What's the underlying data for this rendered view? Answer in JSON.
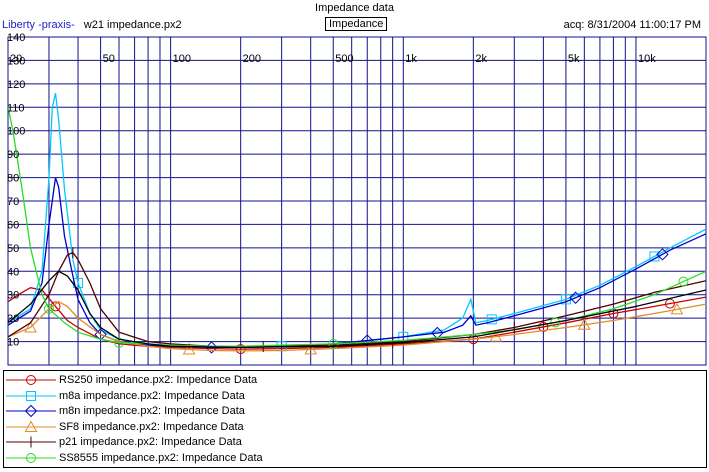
{
  "window": {
    "title": "Impedance data",
    "brand": "Liberty -praxis-",
    "file": "w21 impedance.px2",
    "mode_label": "Impedance",
    "acq": "acq: 8/31/2004 11:00:17 PM"
  },
  "colors": {
    "grid": "#10108c",
    "axis_text": "#000000"
  },
  "chart_data": {
    "type": "line",
    "title": "Impedance data",
    "xscale": "log",
    "xlim": [
      20,
      20000
    ],
    "ylim": [
      0,
      140
    ],
    "x_ticks": [
      20,
      50,
      100,
      200,
      500,
      1000,
      2000,
      5000,
      10000
    ],
    "x_tick_labels": [
      "20",
      "50",
      "100",
      "200",
      "500",
      "1k",
      "2k",
      "5k",
      "10k"
    ],
    "y_ticks": [
      10,
      20,
      30,
      40,
      50,
      60,
      70,
      80,
      90,
      100,
      110,
      120,
      130,
      140
    ],
    "y_tick_labels": [
      "10",
      "20",
      "30",
      "40",
      "50",
      "60",
      "70",
      "80",
      "90",
      "100",
      "110",
      "120",
      "130",
      "140"
    ],
    "grid": true,
    "legend_position": "bottom",
    "series": [
      {
        "name": "RS250 impedance.px2:  Impedance Data",
        "color": "#c80000",
        "marker": "circle",
        "points": [
          [
            20,
            27
          ],
          [
            23,
            31
          ],
          [
            25,
            33
          ],
          [
            28,
            32
          ],
          [
            32,
            25
          ],
          [
            36,
            19
          ],
          [
            40,
            16
          ],
          [
            50,
            11
          ],
          [
            60,
            9
          ],
          [
            80,
            8
          ],
          [
            100,
            7.5
          ],
          [
            150,
            7
          ],
          [
            200,
            6.8
          ],
          [
            300,
            7
          ],
          [
            500,
            7.5
          ],
          [
            1000,
            9
          ],
          [
            2000,
            11
          ],
          [
            3000,
            14
          ],
          [
            5000,
            18
          ],
          [
            8000,
            22
          ],
          [
            12000,
            25
          ],
          [
            20000,
            29
          ]
        ],
        "marker_x": [
          32,
          200,
          2000,
          4000,
          8000,
          14000
        ]
      },
      {
        "name": "m8a impedance.px2:  Impedance Data",
        "color": "#00c8ff",
        "marker": "square",
        "points": [
          [
            20,
            18
          ],
          [
            25,
            24
          ],
          [
            28,
            40
          ],
          [
            30,
            80
          ],
          [
            31,
            110
          ],
          [
            32,
            116
          ],
          [
            33,
            105
          ],
          [
            35,
            75
          ],
          [
            38,
            45
          ],
          [
            40,
            35
          ],
          [
            45,
            22
          ],
          [
            50,
            15
          ],
          [
            60,
            11
          ],
          [
            80,
            9
          ],
          [
            100,
            8
          ],
          [
            150,
            7.5
          ],
          [
            200,
            7.5
          ],
          [
            300,
            8
          ],
          [
            500,
            9
          ],
          [
            800,
            11
          ],
          [
            1000,
            12
          ],
          [
            1500,
            15
          ],
          [
            1800,
            20
          ],
          [
            1950,
            28
          ],
          [
            2050,
            18
          ],
          [
            2300,
            19
          ],
          [
            3000,
            22
          ],
          [
            5000,
            28
          ],
          [
            7000,
            34
          ],
          [
            10000,
            42
          ],
          [
            14000,
            50
          ],
          [
            20000,
            58
          ]
        ],
        "marker_x": [
          40,
          300,
          1000,
          2400,
          5000,
          12000
        ]
      },
      {
        "name": "m8n impedance.px2:  Impedance Data",
        "color": "#0000c8",
        "marker": "diamond",
        "points": [
          [
            20,
            17
          ],
          [
            25,
            23
          ],
          [
            28,
            35
          ],
          [
            30,
            60
          ],
          [
            32,
            80
          ],
          [
            33,
            76
          ],
          [
            35,
            55
          ],
          [
            38,
            38
          ],
          [
            40,
            28
          ],
          [
            45,
            18
          ],
          [
            50,
            13
          ],
          [
            60,
            10
          ],
          [
            80,
            8.5
          ],
          [
            100,
            8
          ],
          [
            150,
            7.5
          ],
          [
            200,
            7.5
          ],
          [
            300,
            8
          ],
          [
            500,
            9
          ],
          [
            800,
            11
          ],
          [
            1000,
            12
          ],
          [
            1500,
            14
          ],
          [
            1800,
            17
          ],
          [
            1950,
            21
          ],
          [
            2050,
            17
          ],
          [
            2300,
            18
          ],
          [
            3000,
            21
          ],
          [
            5000,
            27
          ],
          [
            7000,
            33
          ],
          [
            10000,
            41
          ],
          [
            14000,
            49
          ],
          [
            20000,
            56
          ]
        ],
        "marker_x": [
          50,
          150,
          700,
          1400,
          5500,
          13000
        ]
      },
      {
        "name": "SF8 impedance.px2:  Impedance Data",
        "color": "#e08c28",
        "marker": "triangle",
        "points": [
          [
            20,
            12
          ],
          [
            25,
            16
          ],
          [
            30,
            24
          ],
          [
            33,
            27
          ],
          [
            36,
            25
          ],
          [
            40,
            20
          ],
          [
            50,
            13
          ],
          [
            60,
            10
          ],
          [
            80,
            8
          ],
          [
            100,
            7
          ],
          [
            150,
            6.2
          ],
          [
            200,
            6
          ],
          [
            300,
            6.2
          ],
          [
            500,
            7
          ],
          [
            1000,
            8.5
          ],
          [
            2000,
            11
          ],
          [
            3000,
            13
          ],
          [
            5000,
            16
          ],
          [
            8000,
            19
          ],
          [
            12000,
            22
          ],
          [
            20000,
            26
          ]
        ],
        "marker_x": [
          25,
          120,
          400,
          2500,
          6000,
          15000
        ]
      },
      {
        "name": "p21 impedance.px2:  Impedance Data",
        "color": "#500000",
        "marker": "plus",
        "points": [
          [
            20,
            12
          ],
          [
            25,
            18
          ],
          [
            30,
            30
          ],
          [
            33,
            40
          ],
          [
            36,
            47
          ],
          [
            38,
            48
          ],
          [
            40,
            45
          ],
          [
            45,
            35
          ],
          [
            50,
            24
          ],
          [
            60,
            14
          ],
          [
            80,
            10
          ],
          [
            100,
            9
          ],
          [
            150,
            8
          ],
          [
            200,
            7.8
          ],
          [
            300,
            8
          ],
          [
            500,
            8.5
          ],
          [
            1000,
            10
          ],
          [
            2000,
            13
          ],
          [
            3000,
            16
          ],
          [
            5000,
            21
          ],
          [
            8000,
            26
          ],
          [
            12000,
            31
          ],
          [
            20000,
            36
          ]
        ],
        "marker_x": [
          38,
          250,
          900,
          3000,
          9000
        ]
      },
      {
        "name": "SS8555 impedance.px2:  Impedance Data",
        "color": "#28dc28",
        "marker": "circle",
        "points": [
          [
            20,
            110
          ],
          [
            21,
            100
          ],
          [
            23,
            75
          ],
          [
            25,
            50
          ],
          [
            28,
            30
          ],
          [
            30,
            24
          ],
          [
            35,
            18
          ],
          [
            40,
            14
          ],
          [
            50,
            11
          ],
          [
            60,
            9.5
          ],
          [
            80,
            9
          ],
          [
            100,
            8.5
          ],
          [
            150,
            8
          ],
          [
            200,
            8
          ],
          [
            300,
            8.5
          ],
          [
            500,
            9
          ],
          [
            1000,
            10.5
          ],
          [
            2000,
            13
          ],
          [
            3000,
            15
          ],
          [
            5000,
            19
          ],
          [
            8000,
            24
          ],
          [
            12000,
            30
          ],
          [
            20000,
            40
          ]
        ],
        "marker_x": [
          30,
          60,
          500,
          4500,
          16000
        ]
      },
      {
        "name": "",
        "color": "#000000",
        "marker": "none",
        "points": [
          [
            20,
            18
          ],
          [
            25,
            26
          ],
          [
            30,
            36
          ],
          [
            33,
            40
          ],
          [
            36,
            38
          ],
          [
            40,
            32
          ],
          [
            45,
            22
          ],
          [
            50,
            16
          ],
          [
            60,
            11
          ],
          [
            80,
            9
          ],
          [
            100,
            8
          ],
          [
            200,
            7.5
          ],
          [
            500,
            8
          ],
          [
            1000,
            9.5
          ],
          [
            2000,
            12
          ],
          [
            5000,
            19
          ],
          [
            10000,
            25
          ],
          [
            20000,
            32
          ]
        ],
        "marker_x": []
      }
    ]
  }
}
